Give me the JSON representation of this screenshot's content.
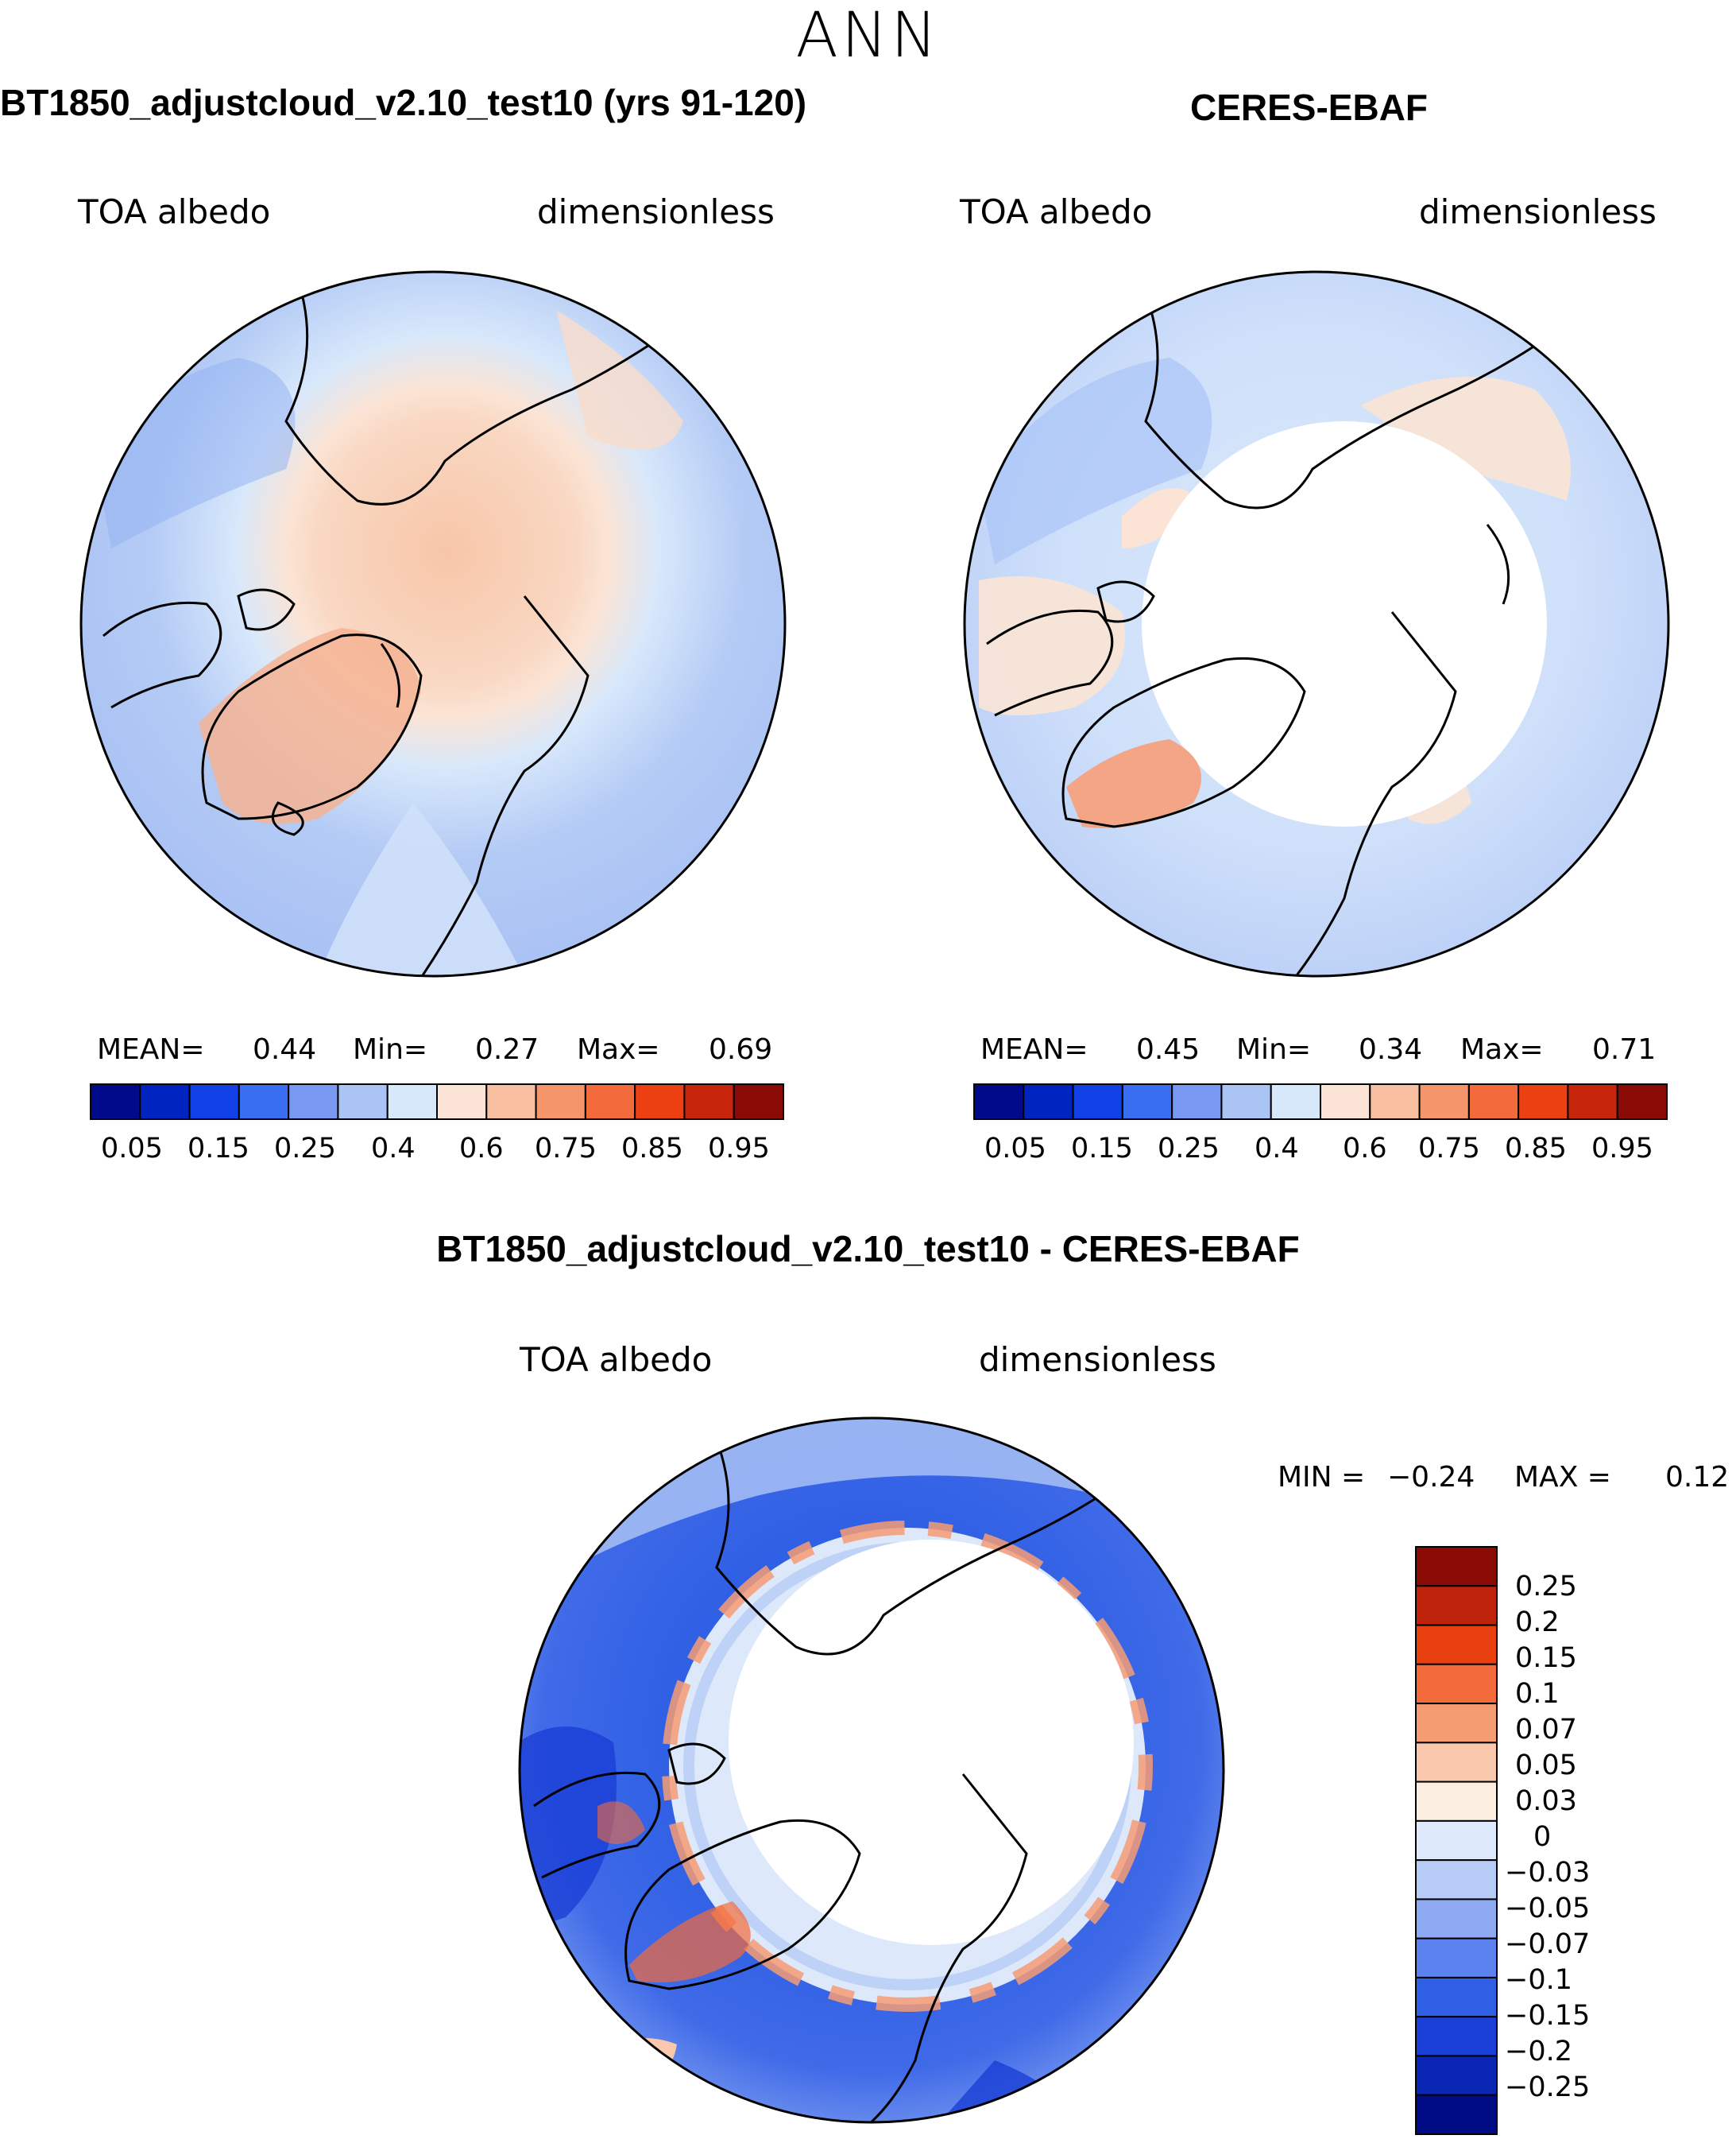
{
  "main_title": "ANN",
  "panels": [
    {
      "title": "BT1850_adjustcloud_v2.10_test10 (yrs 91-120)",
      "variable": "TOA albedo",
      "units": "dimensionless",
      "stats": {
        "mean_label": "MEAN=",
        "mean": "0.44",
        "min_label": "Min=",
        "min": "0.27",
        "max_label": "Max=",
        "max": "0.69"
      }
    },
    {
      "title": "CERES-EBAF",
      "variable": "TOA albedo",
      "units": "dimensionless",
      "stats": {
        "mean_label": "MEAN=",
        "mean": "0.45",
        "min_label": "Min=",
        "min": "0.34",
        "max_label": "Max=",
        "max": "0.71"
      }
    }
  ],
  "colorbar": {
    "colors": [
      "#000a8a",
      "#0024c0",
      "#1040e6",
      "#3a6ef2",
      "#7898f2",
      "#aac4f6",
      "#d8e8fb",
      "#fbe4d5",
      "#f8c0a0",
      "#f5956c",
      "#f36a3c",
      "#ec3f12",
      "#c8260c",
      "#8a0a06"
    ],
    "ticks": [
      "0.05",
      "0.15",
      "0.25",
      "0.4",
      "0.6",
      "0.75",
      "0.85",
      "0.95"
    ]
  },
  "diff_panel": {
    "title": "BT1850_adjustcloud_v2.10_test10 - CERES-EBAF",
    "variable": "TOA albedo",
    "units": "dimensionless",
    "stats": {
      "min_label": "MIN =",
      "min": "−0.24",
      "max_label": "MAX =",
      "max": "0.12"
    },
    "colorbar": {
      "colors": [
        "#8a0a06",
        "#c0230c",
        "#e8400f",
        "#f36b3a",
        "#f69c73",
        "#fac9ad",
        "#fdeee2",
        "#dde9fa",
        "#b7ccf6",
        "#8eaaf2",
        "#5b82ef",
        "#2f5fe4",
        "#1a3fd6",
        "#0a26b4",
        "#000c86"
      ],
      "labels": [
        "0.25",
        "0.2",
        "0.15",
        "0.1",
        "0.07",
        "0.05",
        "0.03",
        "0",
        "−0.03",
        "−0.05",
        "−0.07",
        "−0.1",
        "−0.15",
        "−0.2",
        "−0.25"
      ]
    }
  },
  "chart_data": [
    {
      "type": "map",
      "projection": "north polar stereographic",
      "title": "BT1850_adjustcloud_v2.10_test10 (yrs 91-120)",
      "variable": "TOA albedo",
      "units": "dimensionless",
      "mean": 0.44,
      "min": 0.27,
      "max": 0.69,
      "contour_levels": [
        0.05,
        0.1,
        0.15,
        0.2,
        0.25,
        0.3,
        0.4,
        0.5,
        0.6,
        0.7,
        0.75,
        0.8,
        0.85,
        0.9,
        0.95
      ]
    },
    {
      "type": "map",
      "projection": "north polar stereographic",
      "title": "CERES-EBAF",
      "variable": "TOA albedo",
      "units": "dimensionless",
      "mean": 0.45,
      "min": 0.34,
      "max": 0.71,
      "contour_levels": [
        0.05,
        0.1,
        0.15,
        0.2,
        0.25,
        0.3,
        0.4,
        0.5,
        0.6,
        0.7,
        0.75,
        0.8,
        0.85,
        0.9,
        0.95
      ]
    },
    {
      "type": "map",
      "projection": "north polar stereographic",
      "title": "BT1850_adjustcloud_v2.10_test10 - CERES-EBAF",
      "variable": "TOA albedo",
      "units": "dimensionless",
      "min": -0.24,
      "max": 0.12,
      "contour_levels": [
        -0.25,
        -0.2,
        -0.15,
        -0.1,
        -0.07,
        -0.05,
        -0.03,
        0,
        0.03,
        0.05,
        0.07,
        0.1,
        0.15,
        0.2,
        0.25
      ]
    }
  ]
}
